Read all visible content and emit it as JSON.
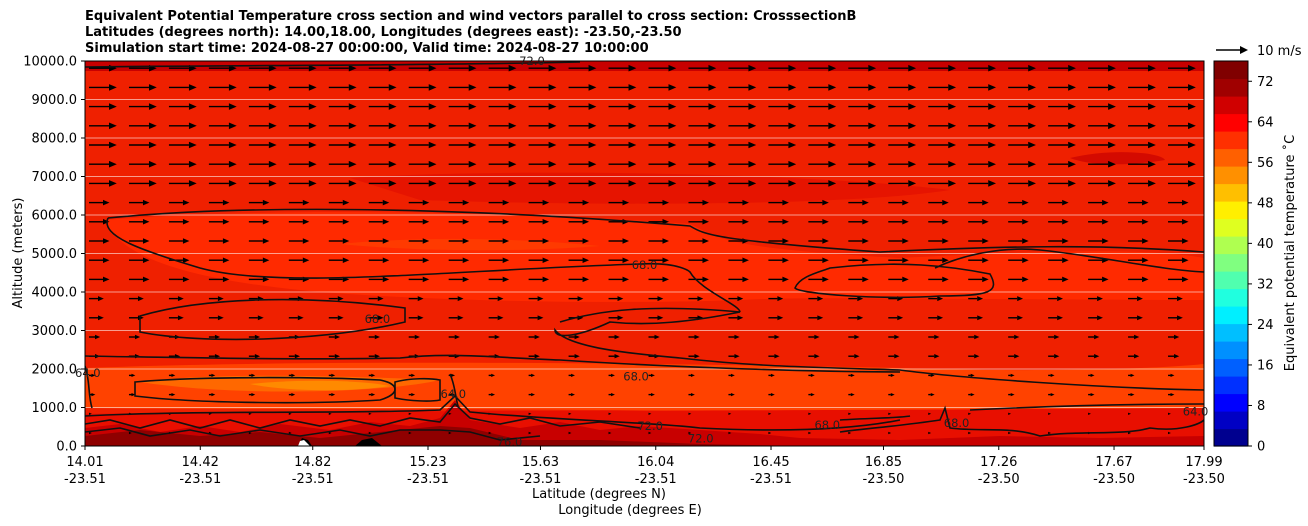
{
  "chart_data": {
    "type": "heatmap",
    "title_lines": [
      "Equivalent Potential Temperature cross section and wind vectors parallel to cross section: CrosssectionB",
      "Latitudes (degrees north): 14.00,18.00, Longitudes (degrees east): -23.50,-23.50",
      "Simulation start time: 2024-08-27 00:00:00, Valid time: 2024-08-27 10:00:00"
    ],
    "ylabel": "Altitude (meters)",
    "xlabel_lat": "Latitude (degrees N)",
    "xlabel_lon": "Longitude (degrees E)",
    "ylim": [
      0,
      10000
    ],
    "y_ticks": [
      "0.0",
      "1000.0",
      "2000.0",
      "3000.0",
      "4000.0",
      "5000.0",
      "6000.0",
      "7000.0",
      "8000.0",
      "9000.0",
      "10000.0"
    ],
    "x_ticks_lat": [
      "14.01",
      "14.42",
      "14.82",
      "15.23",
      "15.63",
      "16.04",
      "16.45",
      "16.85",
      "17.26",
      "17.67",
      "17.99"
    ],
    "x_ticks_lon": [
      "-23.51",
      "-23.51",
      "-23.51",
      "-23.51",
      "-23.51",
      "-23.51",
      "-23.51",
      "-23.50",
      "-23.50",
      "-23.50",
      "-23.50"
    ],
    "colorbar": {
      "label": "Equivalent potential temperature ˚C",
      "range": [
        0,
        76
      ],
      "ticks": [
        "0",
        "8",
        "16",
        "24",
        "32",
        "40",
        "48",
        "56",
        "64",
        "72"
      ],
      "colors": [
        "#00008f",
        "#0000c4",
        "#0000ff",
        "#0030ff",
        "#0060ff",
        "#0090ff",
        "#00bfff",
        "#00efff",
        "#20ffdf",
        "#50ffaf",
        "#80ff80",
        "#afff50",
        "#dfff20",
        "#ffef00",
        "#ffbf00",
        "#ff9000",
        "#ff6000",
        "#ff3000",
        "#ff0000",
        "#d00000",
        "#a00000",
        "#800000"
      ]
    },
    "quiver_key": {
      "label": "10 m/s"
    },
    "contour_labels": [
      {
        "text": "68.0",
        "x": 16.0,
        "y": 4700
      },
      {
        "text": "68.0",
        "x": 15.05,
        "y": 3300
      },
      {
        "text": "68.0",
        "x": 15.97,
        "y": 1800
      },
      {
        "text": "64.0",
        "x": 14.02,
        "y": 1900
      },
      {
        "text": "64.0",
        "x": 15.32,
        "y": 1350
      },
      {
        "text": "72.0",
        "x": 16.02,
        "y": 520
      },
      {
        "text": "72.0",
        "x": 16.2,
        "y": 200
      },
      {
        "text": "76.0",
        "x": 15.52,
        "y": 100
      },
      {
        "text": "68.0",
        "x": 16.65,
        "y": 550
      },
      {
        "text": "68.0",
        "x": 17.11,
        "y": 600
      },
      {
        "text": "64.0",
        "x": 17.96,
        "y": 900
      },
      {
        "text": "72.0",
        "x": 15.6,
        "y": 10000
      }
    ]
  }
}
